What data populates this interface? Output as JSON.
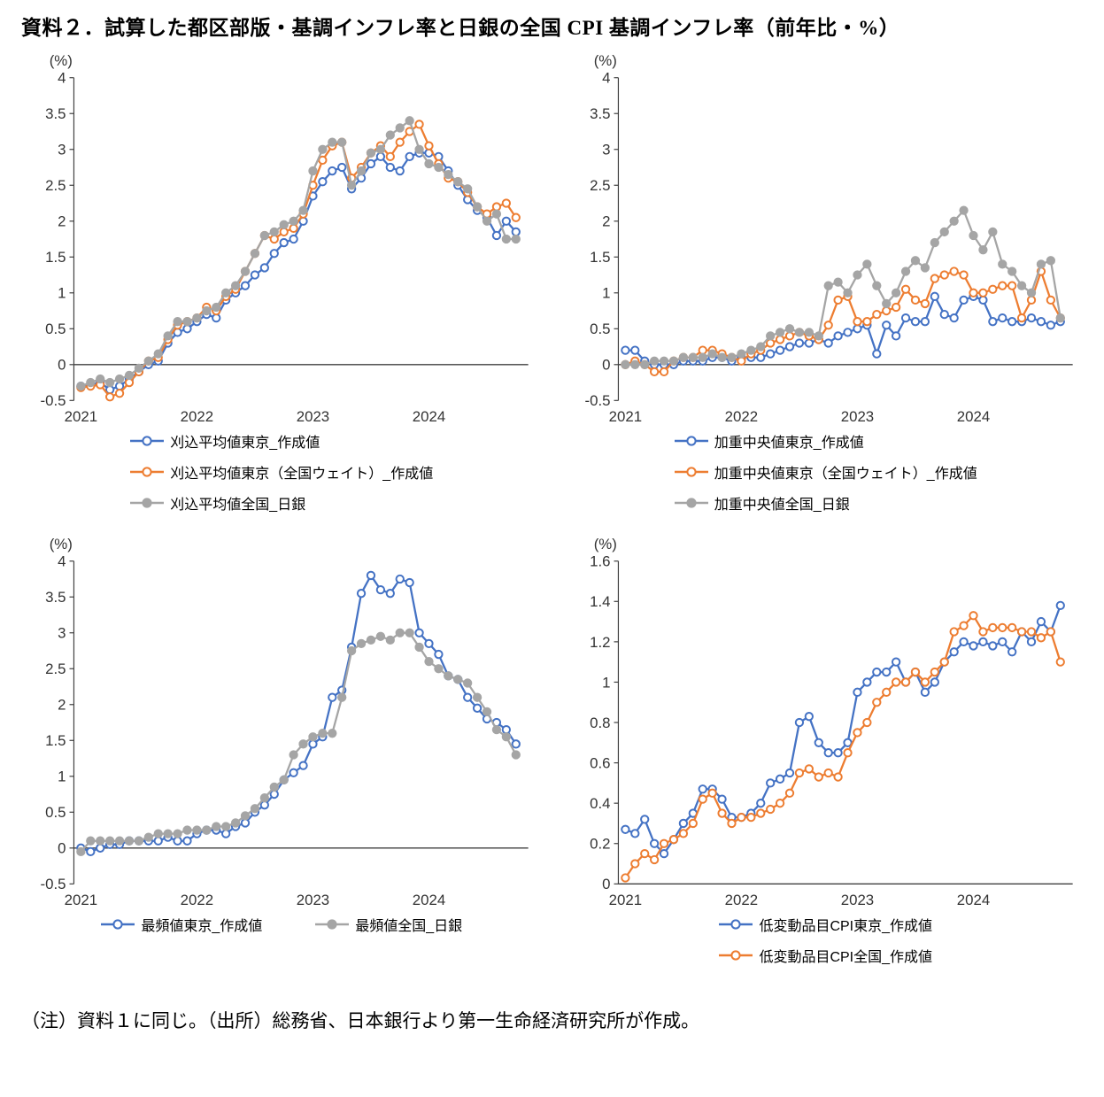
{
  "page": {
    "title": "資料２．試算した都区部版・基調インフレ率と日銀の全国 CPI 基調インフレ率（前年比・%）",
    "note": "（注）資料１に同じ。（出所）総務省、日本銀行より第一生命経済研究所が作成。"
  },
  "colors": {
    "blue": "#4472C4",
    "orange": "#ED7D31",
    "gray": "#A5A5A5"
  },
  "chart_data": [
    {
      "id": "trimmed-mean",
      "type": "line",
      "title": "",
      "ylabel": "(%)",
      "xlabel": "",
      "ylim": [
        -0.5,
        4
      ],
      "yticks": [
        -0.5,
        0,
        0.5,
        1,
        1.5,
        2,
        2.5,
        3,
        3.5,
        4
      ],
      "x_year_labels": [
        "2021",
        "2022",
        "2023",
        "2024"
      ],
      "grid": false,
      "legend_position": "bottom",
      "legend_layout": "column",
      "series": [
        {
          "name": "刈込平均値東京_作成値",
          "color": "#4472C4",
          "marker": "open",
          "values": [
            -0.3,
            -0.28,
            -0.25,
            -0.35,
            -0.3,
            -0.2,
            -0.1,
            0,
            0.05,
            0.3,
            0.45,
            0.5,
            0.6,
            0.7,
            0.65,
            0.9,
            1,
            1.1,
            1.25,
            1.35,
            1.55,
            1.7,
            1.75,
            2,
            2.35,
            2.55,
            2.7,
            2.75,
            2.45,
            2.6,
            2.8,
            2.9,
            2.75,
            2.7,
            2.9,
            2.95,
            2.95,
            2.9,
            2.7,
            2.5,
            2.3,
            2.15,
            2.05,
            1.8,
            2,
            1.85
          ]
        },
        {
          "name": "刈込平均値東京（全国ウェイト）_作成値",
          "color": "#ED7D31",
          "marker": "open",
          "values": [
            -0.32,
            -0.3,
            -0.28,
            -0.45,
            -0.4,
            -0.25,
            -0.1,
            0.05,
            0.1,
            0.35,
            0.55,
            0.6,
            0.65,
            0.8,
            0.75,
            0.95,
            1.05,
            1.3,
            1.55,
            1.8,
            1.75,
            1.85,
            1.9,
            2.1,
            2.5,
            2.85,
            3.05,
            3.1,
            2.6,
            2.75,
            2.95,
            3.05,
            2.9,
            3.1,
            3.25,
            3.35,
            3.05,
            2.8,
            2.6,
            2.55,
            2.4,
            2.2,
            2.1,
            2.2,
            2.25,
            2.05
          ]
        },
        {
          "name": "刈込平均値全国_日銀",
          "color": "#A5A5A5",
          "marker": "filled",
          "values": [
            -0.3,
            -0.25,
            -0.2,
            -0.25,
            -0.2,
            -0.15,
            -0.05,
            0.05,
            0.15,
            0.4,
            0.6,
            0.6,
            0.65,
            0.75,
            0.8,
            1,
            1.1,
            1.3,
            1.55,
            1.8,
            1.85,
            1.95,
            2,
            2.15,
            2.7,
            3,
            3.1,
            3.1,
            2.5,
            2.7,
            2.95,
            3,
            3.2,
            3.3,
            3.4,
            3,
            2.8,
            2.75,
            2.65,
            2.55,
            2.45,
            2.2,
            2,
            2.1,
            1.75,
            1.75
          ]
        }
      ]
    },
    {
      "id": "weighted-median",
      "type": "line",
      "title": "",
      "ylabel": "(%)",
      "xlabel": "",
      "ylim": [
        -0.5,
        4
      ],
      "yticks": [
        -0.5,
        0,
        0.5,
        1,
        1.5,
        2,
        2.5,
        3,
        3.5,
        4
      ],
      "x_year_labels": [
        "2021",
        "2022",
        "2023",
        "2024"
      ],
      "grid": false,
      "legend_position": "bottom",
      "legend_layout": "column",
      "series": [
        {
          "name": "加重中央値東京_作成値",
          "color": "#4472C4",
          "marker": "open",
          "values": [
            0.2,
            0.2,
            0.05,
            0,
            0,
            0,
            0.05,
            0.05,
            0.05,
            0.1,
            0.1,
            0.05,
            0.1,
            0.1,
            0.1,
            0.15,
            0.2,
            0.25,
            0.3,
            0.3,
            0.35,
            0.3,
            0.4,
            0.45,
            0.5,
            0.55,
            0.15,
            0.55,
            0.4,
            0.65,
            0.6,
            0.6,
            0.95,
            0.7,
            0.65,
            0.9,
            0.95,
            0.9,
            0.6,
            0.65,
            0.6,
            0.6,
            0.65,
            0.6,
            0.55,
            0.6
          ]
        },
        {
          "name": "加重中央値東京（全国ウェイト）_作成値",
          "color": "#ED7D31",
          "marker": "open",
          "values": [
            0,
            0.05,
            0,
            -0.1,
            -0.1,
            0.05,
            0.1,
            0.1,
            0.2,
            0.2,
            0.15,
            0.1,
            0.05,
            0.15,
            0.2,
            0.3,
            0.35,
            0.4,
            0.45,
            0.4,
            0.35,
            0.55,
            0.9,
            0.95,
            0.6,
            0.6,
            0.7,
            0.75,
            0.8,
            1.05,
            0.9,
            0.85,
            1.2,
            1.25,
            1.3,
            1.25,
            1,
            1,
            1.05,
            1.1,
            1.1,
            0.65,
            0.9,
            1.3,
            0.9,
            0.65
          ]
        },
        {
          "name": "加重中央値全国_日銀",
          "color": "#A5A5A5",
          "marker": "filled",
          "values": [
            0,
            0,
            0,
            0.05,
            0.05,
            0.05,
            0.1,
            0.1,
            0.1,
            0.15,
            0.1,
            0.1,
            0.15,
            0.2,
            0.25,
            0.4,
            0.45,
            0.5,
            0.45,
            0.45,
            0.4,
            1.1,
            1.15,
            1,
            1.25,
            1.4,
            1.1,
            0.85,
            1,
            1.3,
            1.45,
            1.35,
            1.7,
            1.85,
            2,
            2.15,
            1.8,
            1.6,
            1.85,
            1.4,
            1.3,
            1.1,
            1,
            1.4,
            1.45,
            0.65
          ]
        }
      ]
    },
    {
      "id": "mode",
      "type": "line",
      "title": "",
      "ylabel": "(%)",
      "xlabel": "",
      "ylim": [
        -0.5,
        4
      ],
      "yticks": [
        -0.5,
        0,
        0.5,
        1,
        1.5,
        2,
        2.5,
        3,
        3.5,
        4
      ],
      "x_year_labels": [
        "2021",
        "2022",
        "2023",
        "2024"
      ],
      "grid": false,
      "legend_position": "bottom",
      "legend_layout": "row",
      "series": [
        {
          "name": "最頻値東京_作成値",
          "color": "#4472C4",
          "marker": "open",
          "values": [
            0,
            -0.05,
            0,
            0.05,
            0.05,
            0.1,
            0.1,
            0.1,
            0.1,
            0.15,
            0.1,
            0.1,
            0.2,
            0.25,
            0.25,
            0.2,
            0.3,
            0.35,
            0.5,
            0.6,
            0.75,
            0.95,
            1.05,
            1.15,
            1.45,
            1.55,
            2.1,
            2.2,
            2.8,
            3.55,
            3.8,
            3.6,
            3.55,
            3.75,
            3.7,
            3,
            2.85,
            2.7,
            2.4,
            2.35,
            2.1,
            1.95,
            1.8,
            1.75,
            1.65,
            1.45
          ]
        },
        {
          "name": "最頻値全国_日銀",
          "color": "#A5A5A5",
          "marker": "filled",
          "values": [
            -0.05,
            0.1,
            0.1,
            0.1,
            0.1,
            0.1,
            0.1,
            0.15,
            0.2,
            0.2,
            0.2,
            0.25,
            0.25,
            0.25,
            0.3,
            0.3,
            0.35,
            0.45,
            0.55,
            0.7,
            0.85,
            0.95,
            1.3,
            1.45,
            1.55,
            1.6,
            1.6,
            2.1,
            2.75,
            2.85,
            2.9,
            2.95,
            2.9,
            3,
            3,
            2.8,
            2.6,
            2.5,
            2.4,
            2.35,
            2.3,
            2.1,
            1.9,
            1.65,
            1.55,
            1.3
          ]
        }
      ]
    },
    {
      "id": "low-volatility-cpi",
      "type": "line",
      "title": "",
      "ylabel": "(%)",
      "xlabel": "",
      "ylim": [
        0,
        1.6
      ],
      "yticks": [
        0,
        0.2,
        0.4,
        0.6,
        0.8,
        1,
        1.2,
        1.4,
        1.6
      ],
      "x_year_labels": [
        "2021",
        "2022",
        "2023",
        "2024"
      ],
      "grid": false,
      "legend_position": "bottom",
      "legend_layout": "column",
      "series": [
        {
          "name": "低変動品目CPI東京_作成値",
          "color": "#4472C4",
          "marker": "open",
          "values": [
            0.27,
            0.25,
            0.32,
            0.2,
            0.15,
            0.22,
            0.3,
            0.35,
            0.47,
            0.47,
            0.42,
            0.33,
            0.33,
            0.35,
            0.4,
            0.5,
            0.52,
            0.55,
            0.8,
            0.83,
            0.7,
            0.65,
            0.65,
            0.7,
            0.95,
            1,
            1.05,
            1.05,
            1.1,
            1,
            1.05,
            0.95,
            1,
            1.1,
            1.15,
            1.2,
            1.18,
            1.2,
            1.18,
            1.2,
            1.15,
            1.25,
            1.2,
            1.3,
            1.25,
            1.38
          ]
        },
        {
          "name": "低変動品目CPI全国_作成値",
          "color": "#ED7D31",
          "marker": "open",
          "values": [
            0.03,
            0.1,
            0.15,
            0.12,
            0.2,
            0.22,
            0.25,
            0.3,
            0.42,
            0.45,
            0.35,
            0.3,
            0.33,
            0.33,
            0.35,
            0.37,
            0.4,
            0.45,
            0.55,
            0.57,
            0.53,
            0.55,
            0.53,
            0.65,
            0.75,
            0.8,
            0.9,
            0.95,
            1,
            1,
            1.05,
            1,
            1.05,
            1.1,
            1.25,
            1.28,
            1.33,
            1.25,
            1.27,
            1.27,
            1.27,
            1.25,
            1.25,
            1.22,
            1.25,
            1.1
          ]
        }
      ]
    }
  ]
}
